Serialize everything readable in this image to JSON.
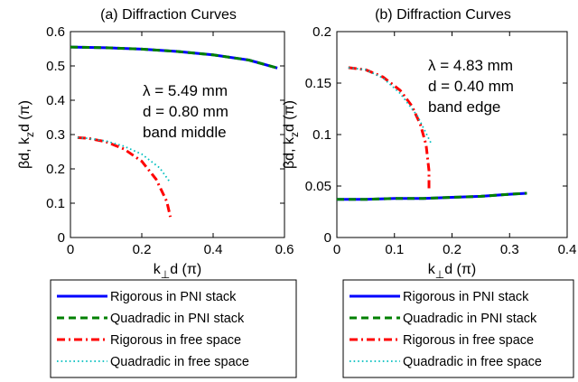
{
  "chart_data": [
    {
      "type": "line",
      "panel_label": "(a)",
      "title": "Diffraction Curves",
      "xlabel": "k⊥d (π)",
      "ylabel": "βd,  kzd (π)",
      "xlim": [
        0,
        0.6
      ],
      "ylim": [
        0,
        0.6
      ],
      "xticks": [
        "0",
        "0.2",
        "0.4",
        "0.6"
      ],
      "yticks": [
        "0",
        "0.1",
        "0.2",
        "0.3",
        "0.4",
        "0.5",
        "0.6"
      ],
      "grid": false,
      "annotations": [
        "λ = 5.49 mm",
        "d = 0.80 mm",
        "band middle"
      ],
      "series": [
        {
          "name": "Rigorous in PNI stack",
          "color": "#0000ff",
          "style": "solid",
          "x": [
            0,
            0.1,
            0.2,
            0.3,
            0.4,
            0.5,
            0.58
          ],
          "y": [
            0.555,
            0.553,
            0.549,
            0.542,
            0.532,
            0.517,
            0.494
          ]
        },
        {
          "name": "Quadradic in PNI stack",
          "color": "#008000",
          "style": "dashed",
          "x": [
            0,
            0.1,
            0.2,
            0.3,
            0.4,
            0.5,
            0.58
          ],
          "y": [
            0.555,
            0.553,
            0.549,
            0.542,
            0.532,
            0.517,
            0.494
          ]
        },
        {
          "name": "Rigorous in free space",
          "color": "#ff0000",
          "style": "dashdot",
          "x": [
            0.02,
            0.05,
            0.1,
            0.15,
            0.2,
            0.24,
            0.27,
            0.28
          ],
          "y": [
            0.291,
            0.289,
            0.279,
            0.258,
            0.222,
            0.17,
            0.105,
            0.06
          ]
        },
        {
          "name": "Quadradic in free space",
          "color": "#00bfbf",
          "style": "dotted",
          "x": [
            0.02,
            0.05,
            0.1,
            0.15,
            0.2,
            0.25,
            0.28
          ],
          "y": [
            0.291,
            0.289,
            0.281,
            0.266,
            0.243,
            0.203,
            0.16
          ]
        }
      ]
    },
    {
      "type": "line",
      "panel_label": "(b)",
      "title": "Diffraction Curves",
      "xlabel": "k⊥d (π)",
      "ylabel": "βd,  kzd (π)",
      "xlim": [
        0,
        0.4
      ],
      "ylim": [
        0,
        0.2
      ],
      "xticks": [
        "0",
        "0.1",
        "0.2",
        "0.3",
        "0.4"
      ],
      "yticks": [
        "0",
        "0.05",
        "0.1",
        "0.15",
        "0.2"
      ],
      "grid": false,
      "annotations": [
        "λ = 4.83 mm",
        "d = 0.40 mm",
        "band edge"
      ],
      "series": [
        {
          "name": "Rigorous in PNI stack",
          "color": "#0000ff",
          "style": "solid",
          "x": [
            0,
            0.05,
            0.1,
            0.15,
            0.2,
            0.25,
            0.3,
            0.33
          ],
          "y": [
            0.037,
            0.037,
            0.038,
            0.038,
            0.039,
            0.04,
            0.042,
            0.043
          ]
        },
        {
          "name": "Quadradic in PNI stack",
          "color": "#008000",
          "style": "dashed",
          "x": [
            0,
            0.05,
            0.1,
            0.15,
            0.2,
            0.25,
            0.3,
            0.33
          ],
          "y": [
            0.037,
            0.037,
            0.038,
            0.038,
            0.039,
            0.04,
            0.042,
            0.043
          ]
        },
        {
          "name": "Rigorous in free space",
          "color": "#ff0000",
          "style": "dashdot",
          "x": [
            0.02,
            0.05,
            0.08,
            0.11,
            0.13,
            0.145,
            0.155,
            0.16,
            0.16
          ],
          "y": [
            0.165,
            0.163,
            0.156,
            0.143,
            0.128,
            0.11,
            0.09,
            0.065,
            0.045
          ]
        },
        {
          "name": "Quadradic in free space",
          "color": "#00bfbf",
          "style": "dotted",
          "x": [
            0.02,
            0.05,
            0.08,
            0.11,
            0.14,
            0.165
          ],
          "y": [
            0.165,
            0.163,
            0.155,
            0.14,
            0.118,
            0.09
          ]
        }
      ]
    }
  ],
  "legend": {
    "entries": [
      {
        "label": "Rigorous in PNI stack",
        "color": "#0000ff",
        "style": "solid"
      },
      {
        "label": "Quadradic in PNI stack",
        "color": "#008000",
        "style": "dashed"
      },
      {
        "label": "Rigorous in free space",
        "color": "#ff0000",
        "style": "dashdot"
      },
      {
        "label": "Quadradic in free space",
        "color": "#00bfbf",
        "style": "dotted"
      }
    ]
  }
}
